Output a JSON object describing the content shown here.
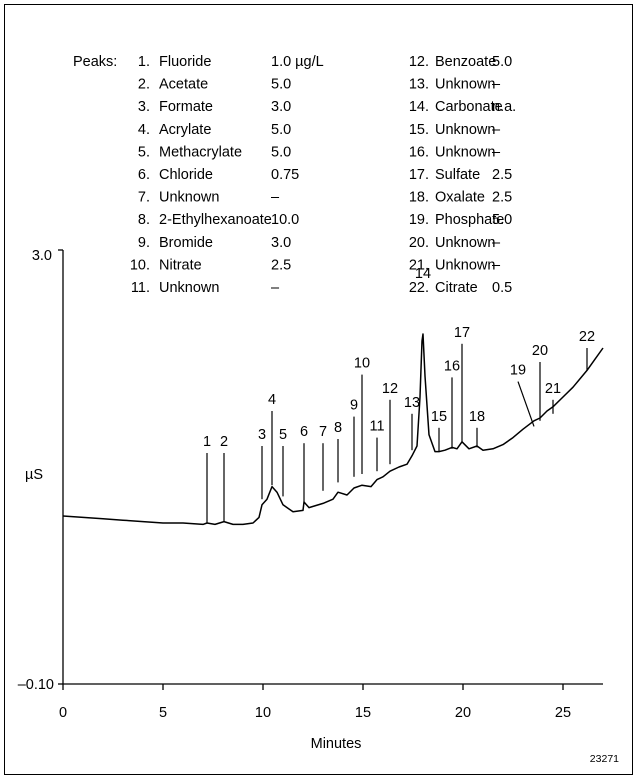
{
  "chart_data": {
    "type": "line",
    "xlabel": "Minutes",
    "ylabel": "µS",
    "xlim": [
      0,
      27
    ],
    "ylim": [
      -0.1,
      3.0
    ],
    "x_ticks": [
      0,
      5,
      10,
      15,
      20,
      25
    ],
    "y_tick_labels": [
      "3.0",
      "–0.10"
    ],
    "figure_id": "23271",
    "legend_title": "Peaks:",
    "peaks": [
      {
        "num": "1.",
        "name": "Fluoride",
        "conc": "1.0 µg/L"
      },
      {
        "num": "2.",
        "name": "Acetate",
        "conc": "5.0"
      },
      {
        "num": "3.",
        "name": "Formate",
        "conc": "3.0"
      },
      {
        "num": "4.",
        "name": "Acrylate",
        "conc": "5.0"
      },
      {
        "num": "5.",
        "name": "Methacrylate",
        "conc": "5.0"
      },
      {
        "num": "6.",
        "name": "Chloride",
        "conc": "0.75"
      },
      {
        "num": "7.",
        "name": "Unknown",
        "conc": "–"
      },
      {
        "num": "8.",
        "name": "2-Ethylhexanoate",
        "conc": "10.0"
      },
      {
        "num": "9.",
        "name": "Bromide",
        "conc": "3.0"
      },
      {
        "num": "10.",
        "name": "Nitrate",
        "conc": "2.5"
      },
      {
        "num": "11.",
        "name": "Unknown",
        "conc": "–"
      },
      {
        "num": "12.",
        "name": "Benzoate",
        "conc": "5.0"
      },
      {
        "num": "13.",
        "name": "Unknown",
        "conc": "–"
      },
      {
        "num": "14.",
        "name": "Carbonate",
        "conc": "n.a."
      },
      {
        "num": "15.",
        "name": "Unknown",
        "conc": "–"
      },
      {
        "num": "16.",
        "name": "Unknown",
        "conc": "–"
      },
      {
        "num": "17.",
        "name": "Sulfate",
        "conc": "2.5"
      },
      {
        "num": "18.",
        "name": "Oxalate",
        "conc": "2.5"
      },
      {
        "num": "19.",
        "name": "Phosphate",
        "conc": "5.0"
      },
      {
        "num": "20.",
        "name": "Unknown",
        "conc": "–"
      },
      {
        "num": "21.",
        "name": "Unknown",
        "conc": "–"
      },
      {
        "num": "22.",
        "name": "Citrate",
        "conc": "0.5"
      }
    ],
    "peak_labels": [
      {
        "label": "1",
        "x": 7.2,
        "line_top": 1.55,
        "line_bottom": 1.05,
        "text_y": 1.6
      },
      {
        "label": "2",
        "x": 8.05,
        "line_top": 1.55,
        "line_bottom": 1.06,
        "text_y": 1.6
      },
      {
        "label": "3",
        "x": 9.95,
        "line_top": 1.6,
        "line_bottom": 1.22,
        "text_y": 1.65
      },
      {
        "label": "4",
        "x": 10.45,
        "line_top": 1.85,
        "line_bottom": 1.32,
        "text_y": 1.9
      },
      {
        "label": "5",
        "x": 11.0,
        "line_top": 1.6,
        "line_bottom": 1.24,
        "text_y": 1.65
      },
      {
        "label": "6",
        "x": 12.05,
        "line_top": 1.62,
        "line_bottom": 1.2,
        "text_y": 1.67
      },
      {
        "label": "7",
        "x": 13.0,
        "line_top": 1.62,
        "line_bottom": 1.28,
        "text_y": 1.67
      },
      {
        "label": "8",
        "x": 13.75,
        "line_top": 1.65,
        "line_bottom": 1.34,
        "text_y": 1.7
      },
      {
        "label": "9",
        "x": 14.55,
        "line_top": 1.81,
        "line_bottom": 1.38,
        "text_y": 1.86
      },
      {
        "label": "10",
        "x": 14.95,
        "line_top": 2.11,
        "line_bottom": 1.4,
        "text_y": 2.16
      },
      {
        "label": "11",
        "x": 15.7,
        "line_top": 1.66,
        "line_bottom": 1.42,
        "text_y": 1.71
      },
      {
        "label": "12",
        "x": 16.35,
        "line_top": 1.93,
        "line_bottom": 1.47,
        "text_y": 1.98
      },
      {
        "label": "13",
        "x": 17.45,
        "line_top": 1.83,
        "line_bottom": 1.57,
        "text_y": 1.88
      },
      {
        "label": "14",
        "x": 18.0,
        "line_top": null,
        "line_bottom": null,
        "text_y": 2.8
      },
      {
        "label": "15",
        "x": 18.8,
        "line_top": 1.73,
        "line_bottom": 1.56,
        "text_y": 1.78
      },
      {
        "label": "16",
        "x": 19.45,
        "line_top": 2.09,
        "line_bottom": 1.58,
        "text_y": 2.14
      },
      {
        "label": "17",
        "x": 19.95,
        "line_top": 2.33,
        "line_bottom": 1.63,
        "text_y": 2.38
      },
      {
        "label": "18",
        "x": 20.7,
        "line_top": 1.73,
        "line_bottom": 1.59,
        "text_y": 1.78
      },
      {
        "label": "19",
        "x": 22.75,
        "line_top": 2.06,
        "line_bottom": 1.74,
        "text_y": 2.11,
        "slant_to": 23.55
      },
      {
        "label": "20",
        "x": 23.85,
        "line_top": 2.2,
        "line_bottom": 1.78,
        "text_y": 2.25
      },
      {
        "label": "21",
        "x": 24.5,
        "line_top": 1.93,
        "line_bottom": 1.83,
        "text_y": 1.98
      },
      {
        "label": "22",
        "x": 26.2,
        "line_top": 2.3,
        "line_bottom": 2.14,
        "text_y": 2.35
      }
    ],
    "series": [
      {
        "x": [
          0,
          1,
          2,
          3,
          4,
          5,
          6,
          7,
          7.2,
          7.6,
          8.05,
          8.5,
          9.0,
          9.5,
          9.8,
          9.95,
          10.2,
          10.45,
          10.7,
          11.0,
          11.5,
          12.0,
          12.05,
          12.3,
          13.0,
          13.5,
          13.75,
          14.2,
          14.55,
          14.95,
          15.4,
          15.7,
          16.0,
          16.35,
          16.8,
          17.2,
          17.45,
          17.7,
          17.85,
          17.95,
          18.0,
          18.1,
          18.3,
          18.6,
          18.8,
          19.1,
          19.45,
          19.7,
          19.95,
          20.3,
          20.7,
          21.0,
          21.5,
          22.0,
          22.5,
          23.0,
          23.55,
          23.85,
          24.2,
          24.5,
          25.0,
          25.5,
          26.2,
          26.6,
          27.0
        ],
        "y": [
          1.1,
          1.09,
          1.08,
          1.07,
          1.06,
          1.05,
          1.05,
          1.04,
          1.05,
          1.04,
          1.06,
          1.04,
          1.04,
          1.05,
          1.09,
          1.18,
          1.22,
          1.31,
          1.27,
          1.18,
          1.13,
          1.14,
          1.2,
          1.16,
          1.19,
          1.22,
          1.27,
          1.25,
          1.3,
          1.32,
          1.31,
          1.36,
          1.38,
          1.42,
          1.45,
          1.47,
          1.53,
          1.6,
          1.95,
          2.35,
          2.4,
          2.1,
          1.68,
          1.56,
          1.56,
          1.57,
          1.59,
          1.58,
          1.63,
          1.58,
          1.6,
          1.57,
          1.58,
          1.61,
          1.66,
          1.72,
          1.78,
          1.8,
          1.85,
          1.88,
          1.95,
          2.02,
          2.14,
          2.22,
          2.3
        ]
      }
    ]
  }
}
